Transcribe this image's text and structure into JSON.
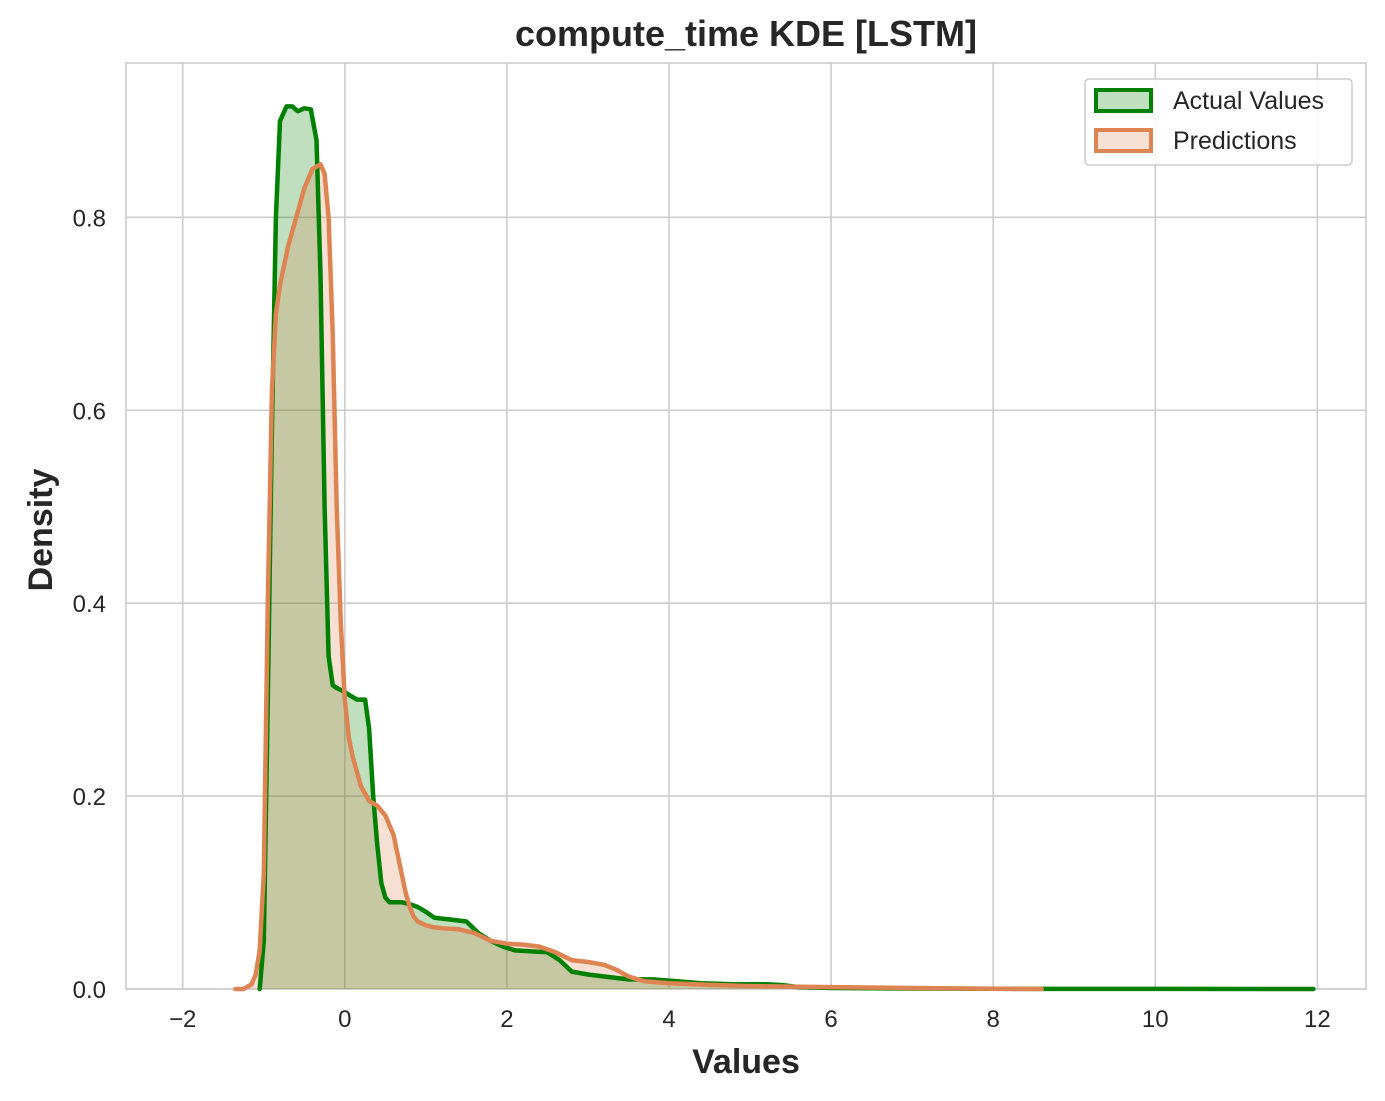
{
  "chart_data": {
    "type": "area",
    "title": "compute_time KDE [LSTM]",
    "xlabel": "Values",
    "ylabel": "Density",
    "xlim": [
      -2.7,
      12.6
    ],
    "ylim": [
      0,
      0.96
    ],
    "xticks": [
      -2,
      0,
      2,
      4,
      6,
      8,
      10,
      12
    ],
    "xtick_labels": [
      "−2",
      "0",
      "2",
      "4",
      "6",
      "8",
      "10",
      "12"
    ],
    "yticks": [
      0.0,
      0.2,
      0.4,
      0.6,
      0.8
    ],
    "ytick_labels": [
      "0.0",
      "0.2",
      "0.4",
      "0.6",
      "0.8"
    ],
    "grid": true,
    "legend_position": "top-right",
    "series": [
      {
        "name": "Actual Values",
        "color": "#008000",
        "x": [
          -1.05,
          -1.0,
          -0.95,
          -0.9,
          -0.85,
          -0.8,
          -0.72,
          -0.65,
          -0.58,
          -0.5,
          -0.42,
          -0.35,
          -0.3,
          -0.25,
          -0.2,
          -0.15,
          -0.1,
          -0.05,
          0.0,
          0.05,
          0.15,
          0.25,
          0.3,
          0.35,
          0.4,
          0.45,
          0.5,
          0.55,
          0.6,
          0.7,
          0.8,
          0.9,
          1.0,
          1.1,
          1.2,
          1.3,
          1.5,
          1.65,
          1.8,
          1.95,
          2.1,
          2.3,
          2.5,
          2.65,
          2.8,
          3.0,
          3.2,
          3.5,
          3.8,
          4.1,
          4.4,
          4.8,
          5.2,
          5.4,
          5.6,
          6.0,
          7.0,
          8.0,
          10.0,
          11.95
        ],
        "y": [
          0.0,
          0.05,
          0.3,
          0.58,
          0.8,
          0.9,
          0.915,
          0.915,
          0.91,
          0.913,
          0.912,
          0.88,
          0.74,
          0.5,
          0.345,
          0.315,
          0.312,
          0.31,
          0.308,
          0.305,
          0.3,
          0.3,
          0.27,
          0.2,
          0.15,
          0.11,
          0.095,
          0.09,
          0.09,
          0.09,
          0.088,
          0.085,
          0.08,
          0.074,
          0.073,
          0.072,
          0.07,
          0.058,
          0.05,
          0.044,
          0.04,
          0.039,
          0.038,
          0.03,
          0.018,
          0.015,
          0.013,
          0.01,
          0.01,
          0.008,
          0.006,
          0.005,
          0.005,
          0.004,
          0.002,
          0.001,
          0.0005,
          0.0002,
          0.0001,
          0.0
        ]
      },
      {
        "name": "Predictions",
        "color": "#dd8452",
        "x": [
          -1.35,
          -1.25,
          -1.15,
          -1.1,
          -1.05,
          -1.0,
          -0.95,
          -0.9,
          -0.85,
          -0.8,
          -0.7,
          -0.6,
          -0.5,
          -0.4,
          -0.3,
          -0.25,
          -0.2,
          -0.15,
          -0.1,
          -0.05,
          0.0,
          0.05,
          0.1,
          0.15,
          0.2,
          0.3,
          0.4,
          0.5,
          0.6,
          0.7,
          0.75,
          0.8,
          0.85,
          0.9,
          1.0,
          1.1,
          1.2,
          1.4,
          1.6,
          1.8,
          2.0,
          2.2,
          2.4,
          2.6,
          2.8,
          3.0,
          3.2,
          3.35,
          3.5,
          3.7,
          4.0,
          4.3,
          4.6,
          5.0,
          6.0,
          7.0,
          8.0,
          8.6
        ],
        "y": [
          0.0,
          0.0,
          0.005,
          0.015,
          0.04,
          0.12,
          0.4,
          0.62,
          0.7,
          0.73,
          0.77,
          0.8,
          0.83,
          0.85,
          0.855,
          0.845,
          0.8,
          0.68,
          0.5,
          0.38,
          0.3,
          0.26,
          0.24,
          0.225,
          0.21,
          0.195,
          0.19,
          0.18,
          0.16,
          0.12,
          0.1,
          0.085,
          0.075,
          0.07,
          0.066,
          0.064,
          0.063,
          0.062,
          0.058,
          0.05,
          0.047,
          0.046,
          0.044,
          0.038,
          0.03,
          0.028,
          0.025,
          0.02,
          0.013,
          0.008,
          0.006,
          0.005,
          0.004,
          0.003,
          0.002,
          0.001,
          0.0003,
          0.0
        ]
      }
    ]
  }
}
